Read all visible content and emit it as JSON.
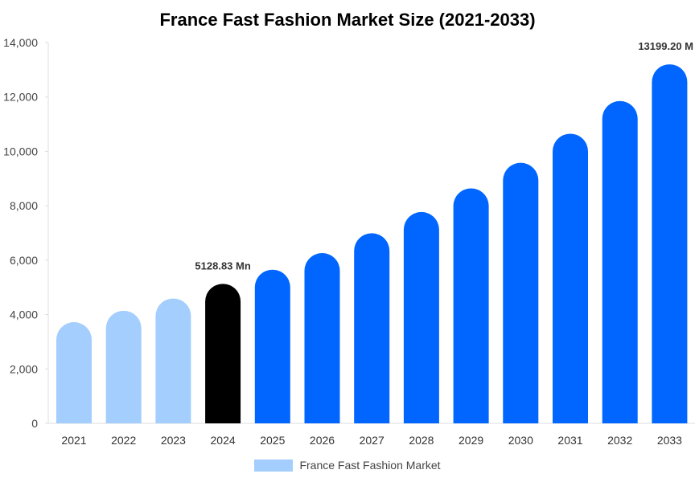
{
  "chart_data": {
    "type": "bar",
    "title": "France Fast Fashion Market Size (2021-2033)",
    "xlabel": "",
    "ylabel": "",
    "categories": [
      "2021",
      "2022",
      "2023",
      "2024",
      "2025",
      "2026",
      "2027",
      "2028",
      "2029",
      "2030",
      "2031",
      "2032",
      "2033"
    ],
    "series": [
      {
        "name": "France Fast Fashion Market",
        "values": [
          3720,
          4140,
          4590,
          5128.83,
          5650,
          6260,
          6990,
          7770,
          8640,
          9580,
          10650,
          11850,
          13199.2
        ]
      }
    ],
    "bar_colors": [
      "#a3cefd",
      "#a3cefd",
      "#a3cefd",
      "#000000",
      "#0066ff",
      "#0066ff",
      "#0066ff",
      "#0066ff",
      "#0066ff",
      "#0066ff",
      "#0066ff",
      "#0066ff",
      "#0066ff"
    ],
    "legend_color": "#a3cefd",
    "ylim": [
      0,
      14000
    ],
    "yticks": [
      "0",
      "2,000",
      "4,000",
      "6,000",
      "8,000",
      "10,000",
      "12,000",
      "14,000"
    ],
    "ytick_values": [
      0,
      2000,
      4000,
      6000,
      8000,
      10000,
      12000,
      14000
    ],
    "data_labels": [
      {
        "index": 3,
        "text": "5128.83 Mn"
      },
      {
        "index": 12,
        "text": "13199.20 M"
      }
    ],
    "grid": false,
    "legend": "bottom-center"
  }
}
